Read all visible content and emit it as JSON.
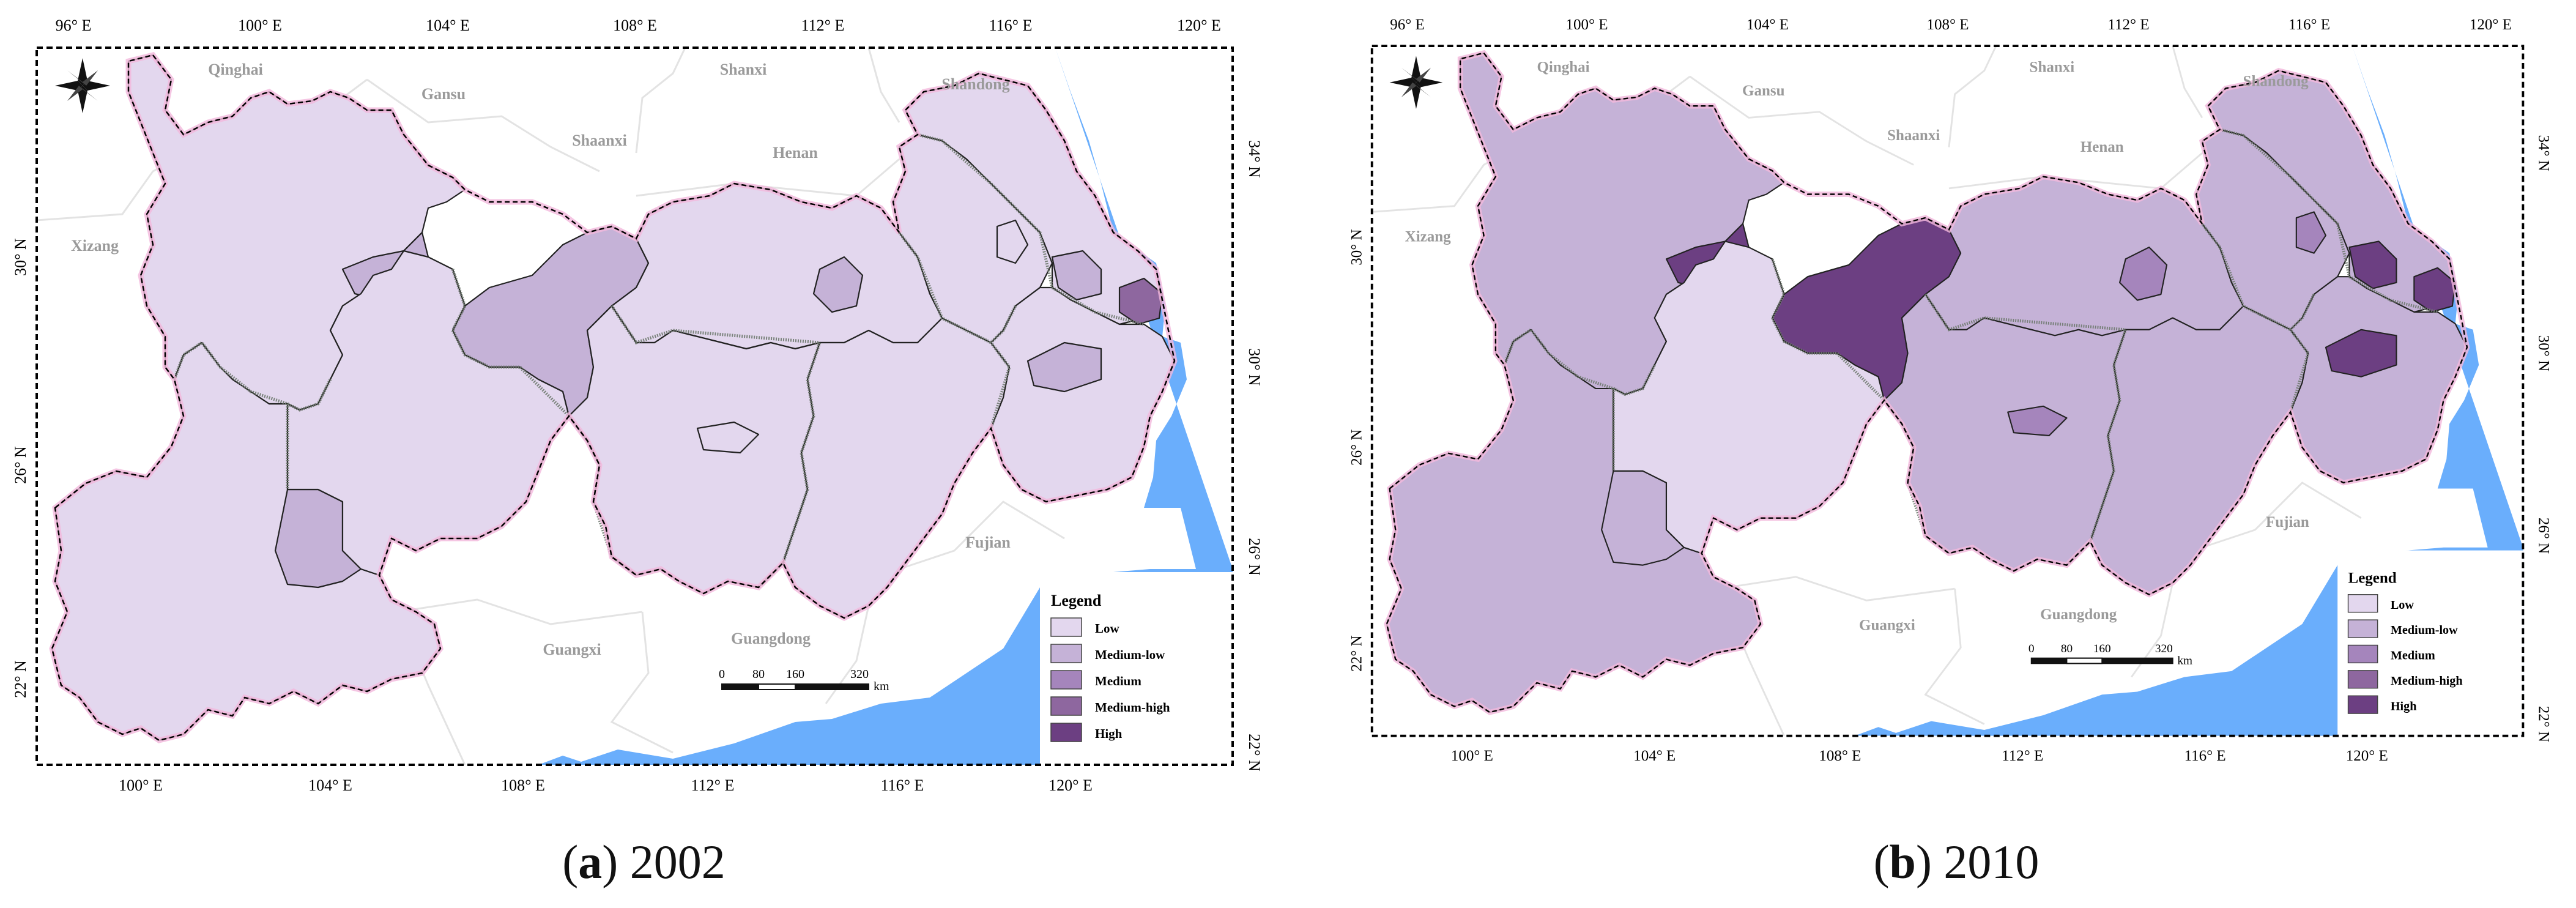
{
  "panels": [
    {
      "id": "a",
      "caption_letter": "a",
      "caption_year": "2002",
      "colors": {
        "yunnan": "#e3d7ee",
        "yunnan_patch": "#c5b2d7",
        "sichuan": "#e3d7ee",
        "sichuan_patch": "#c5b2d7",
        "chongqing": "#c5b2d7",
        "guizhou": "#e3d7ee",
        "hubei": "#e3d7ee",
        "hunan": "#e3d7ee",
        "jiangxi": "#e3d7ee",
        "anhui": "#e3d7ee",
        "jiangsu": "#e3d7ee",
        "zhejiang": "#e3d7ee",
        "hubei_patch": "#c5b2d7",
        "jiangsu_patch": "#c5b2d7",
        "shanghai": "#8e679f",
        "zhejiang_patch": "#c5b2d7",
        "hunan_patch": "#e3d7ee",
        "anhui_patch": "#e3d7ee"
      }
    },
    {
      "id": "b",
      "caption_letter": "b",
      "caption_year": "2010",
      "colors": {
        "yunnan": "#c5b2d7",
        "yunnan_patch": "#c5b2d7",
        "sichuan": "#c5b2d7",
        "sichuan_patch": "#6c3f82",
        "chongqing": "#6c3f82",
        "guizhou": "#e3d7ee",
        "hubei": "#c5b2d7",
        "hunan": "#c5b2d7",
        "jiangxi": "#c5b2d7",
        "anhui": "#c5b2d7",
        "jiangsu": "#c5b2d7",
        "zhejiang": "#c5b2d7",
        "hubei_patch": "#a585bc",
        "jiangsu_patch": "#6c3f82",
        "shanghai": "#6c3f82",
        "zhejiang_patch": "#6c3f82",
        "hunan_patch": "#a585bc",
        "anhui_patch": "#a585bc"
      }
    }
  ],
  "map": {
    "top_lon_ticks": [
      "96° E",
      "100° E",
      "104° E",
      "108° E",
      "112° E",
      "116° E",
      "120° E"
    ],
    "bottom_lon_ticks": [
      "100° E",
      "104° E",
      "108° E",
      "112° E",
      "116° E",
      "120° E"
    ],
    "left_lat_ticks": [
      "30° N",
      "26° N",
      "22° N"
    ],
    "right_lat_ticks": [
      "34° N",
      "30° N",
      "26° N",
      "22° N"
    ],
    "province_labels": [
      "Qinghai",
      "Gansu",
      "Shaanxi",
      "Shanxi",
      "Henan",
      "Shandong",
      "Xizang",
      "Fujian",
      "Guangxi",
      "Guangdong"
    ],
    "scale_labels": [
      "0",
      "80",
      "160",
      "320"
    ],
    "scale_unit": "km",
    "legend_title": "Legend",
    "legend_items": [
      {
        "label": "Low",
        "color": "#e3d7ee"
      },
      {
        "label": "Medium-low",
        "color": "#c5b2d7"
      },
      {
        "label": "Medium",
        "color": "#a585bc"
      },
      {
        "label": "Medium-high",
        "color": "#8e679f"
      },
      {
        "label": "High",
        "color": "#6c3f82"
      }
    ],
    "sea_color": "#6aaefc"
  }
}
